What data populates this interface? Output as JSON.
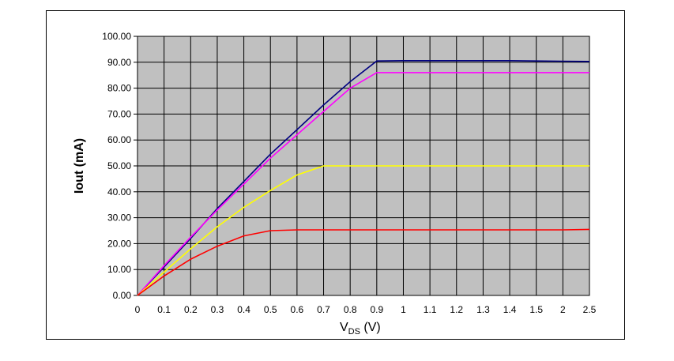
{
  "chart_data": {
    "type": "line",
    "xlabel_main": "V",
    "xlabel_sub": "DS",
    "xlabel_unit": " (V)",
    "ylabel": "Iout (mA)",
    "ylim": [
      0,
      100
    ],
    "grid": true,
    "plot_background": "#c0c0c0",
    "categories": [
      "0",
      "0.1",
      "0.2",
      "0.3",
      "0.4",
      "0.5",
      "0.6",
      "0.7",
      "0.8",
      "0.9",
      "1",
      "1.1",
      "1.2",
      "1.3",
      "1.4",
      "1.5",
      "2",
      "2.5"
    ],
    "y_ticks": [
      "0.00",
      "10.00",
      "20.00",
      "30.00",
      "40.00",
      "50.00",
      "60.00",
      "70.00",
      "80.00",
      "90.00",
      "100.00"
    ],
    "series": [
      {
        "color": "#000080",
        "values": [
          0,
          11,
          22,
          33.5,
          44,
          54.5,
          64,
          73.5,
          82.5,
          90.5,
          90.6,
          90.6,
          90.6,
          90.6,
          90.6,
          90.5,
          90.4,
          90.3
        ]
      },
      {
        "color": "#ff00ff",
        "values": [
          0,
          11.5,
          22.5,
          33,
          43,
          53,
          62,
          71,
          80,
          86,
          86,
          86,
          86,
          86,
          86,
          86,
          86,
          86
        ]
      },
      {
        "color": "#ffff00",
        "values": [
          0,
          9,
          18,
          26.5,
          34,
          40.5,
          46.5,
          50,
          50,
          50,
          50,
          50,
          50,
          50,
          50,
          50,
          50,
          50
        ]
      },
      {
        "color": "#ff0000",
        "values": [
          0,
          7.5,
          14,
          19,
          23,
          25,
          25.3,
          25.3,
          25.3,
          25.3,
          25.3,
          25.3,
          25.3,
          25.3,
          25.3,
          25.3,
          25.3,
          25.5
        ]
      }
    ]
  }
}
